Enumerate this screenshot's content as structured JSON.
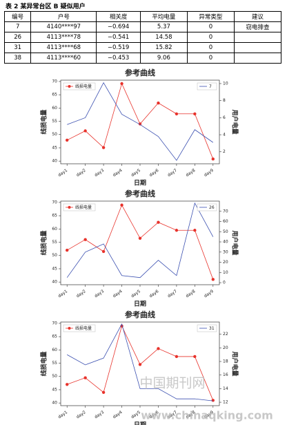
{
  "caption": "表 2 某异常台区 B 疑似用户",
  "table": {
    "header": [
      "编号",
      "户号",
      "相关度",
      "平均电量",
      "异常类型",
      "建议"
    ],
    "rows": [
      [
        "7",
        "4140****97",
        "−0.694",
        "5.37",
        "0",
        "窃电排查"
      ],
      [
        "26",
        "4113****78",
        "−0.541",
        "14.58",
        "0"
      ],
      [
        "31",
        "4113****68",
        "−0.519",
        "15.82",
        "0"
      ],
      [
        "38",
        "4113****60",
        "−0.453",
        "9.06",
        "0"
      ]
    ]
  },
  "chart_data": [
    {
      "type": "line",
      "title": "参考曲线",
      "x_label": "日期",
      "y_label": "线损电量",
      "y2_label": "用户电量",
      "categories": [
        "day1",
        "day2",
        "day3",
        "day4",
        "day5",
        "day6",
        "day7",
        "day8",
        "day9"
      ],
      "series": [
        {
          "name": "线损电量",
          "color": "#e8322b",
          "values": [
            47.9,
            51.4,
            45.1,
            69.2,
            54,
            61.9,
            57.8,
            57.8,
            40.8
          ]
        },
        {
          "name": "7",
          "color": "#3a4fb0",
          "axis": "y2",
          "values": [
            5.2,
            6.0,
            10.1,
            6.4,
            5.2,
            3.8,
            1.0,
            4.6,
            3.1
          ]
        }
      ],
      "ylim": [
        39,
        70.5
      ],
      "yticks": [
        40,
        45,
        50,
        55,
        60,
        65,
        70
      ],
      "y2lim": [
        0.6,
        10.4
      ],
      "y2ticks": [
        2,
        4,
        6,
        8,
        10
      ],
      "legend": "upper left",
      "legend2": "upper right"
    },
    {
      "type": "line",
      "title": "参考曲线",
      "x_label": "日期",
      "y_label": "线损电量",
      "y2_label": "用户电量",
      "categories": [
        "day1",
        "day2",
        "day3",
        "day4",
        "day5",
        "day6",
        "day7",
        "day8",
        "day9"
      ],
      "series": [
        {
          "name": "线损电量",
          "color": "#e8322b",
          "values": [
            52,
            56,
            51.5,
            69,
            56.5,
            62.5,
            59.5,
            59.5,
            41
          ]
        },
        {
          "name": "26",
          "color": "#3a4fb0",
          "axis": "y2",
          "values": [
            5,
            30,
            38,
            7,
            5,
            22,
            7,
            78,
            45
          ]
        }
      ],
      "ylim": [
        39,
        70.5
      ],
      "yticks": [
        40,
        45,
        50,
        55,
        60,
        65,
        70
      ],
      "y2lim": [
        -2,
        80
      ],
      "y2ticks": [
        0,
        10,
        20,
        30,
        40,
        50,
        60,
        70
      ],
      "legend": "upper left",
      "legend2": "upper right"
    },
    {
      "type": "line",
      "title": "参考曲线",
      "x_label": "日期",
      "y_label": "线损电量",
      "y2_label": "用户电量",
      "categories": [
        "day1",
        "day2",
        "day3",
        "day4",
        "day5",
        "day6",
        "day7",
        "day8",
        "day9"
      ],
      "series": [
        {
          "name": "线损电量",
          "color": "#e8322b",
          "values": [
            47,
            49.5,
            44,
            69,
            54.5,
            60.5,
            57.5,
            57.5,
            41
          ]
        },
        {
          "name": "31",
          "color": "#3a4fb0",
          "axis": "y2",
          "values": [
            19,
            17.5,
            18.5,
            23.5,
            14,
            14,
            12.5,
            12.5,
            12.2
          ]
        }
      ],
      "ylim": [
        39,
        70.5
      ],
      "yticks": [
        40,
        45,
        50,
        55,
        60,
        65,
        70
      ],
      "y2lim": [
        11.5,
        23.8
      ],
      "y2ticks": [
        12,
        14,
        16,
        18,
        20,
        22
      ],
      "legend": "upper left",
      "legend2": "upper right"
    }
  ],
  "watermark": [
    "中国期刊网",
    "www.chinaqking.com"
  ]
}
